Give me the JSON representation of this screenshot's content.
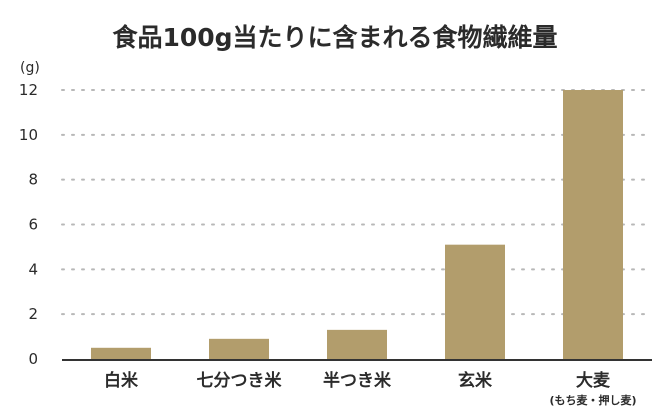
{
  "chart_data": {
    "type": "bar",
    "title": "食品100g当たりに含まれる食物繊維量",
    "unit_label": "(g)",
    "categories": [
      "白米",
      "七分つき米",
      "半つき米",
      "玄米",
      "大麦"
    ],
    "category_sublabels": [
      "",
      "",
      "",
      "",
      "(もち麦・押し麦)"
    ],
    "values": [
      0.5,
      0.9,
      1.3,
      5.1,
      12.0
    ],
    "ylim": [
      0,
      12
    ],
    "yticks": [
      "0",
      "2",
      "4",
      "6",
      "8",
      "10",
      "12"
    ],
    "grid": true,
    "bar_color": "#b29d6c",
    "grid_color": "#b8b8b8",
    "axis_color": "#333333"
  }
}
